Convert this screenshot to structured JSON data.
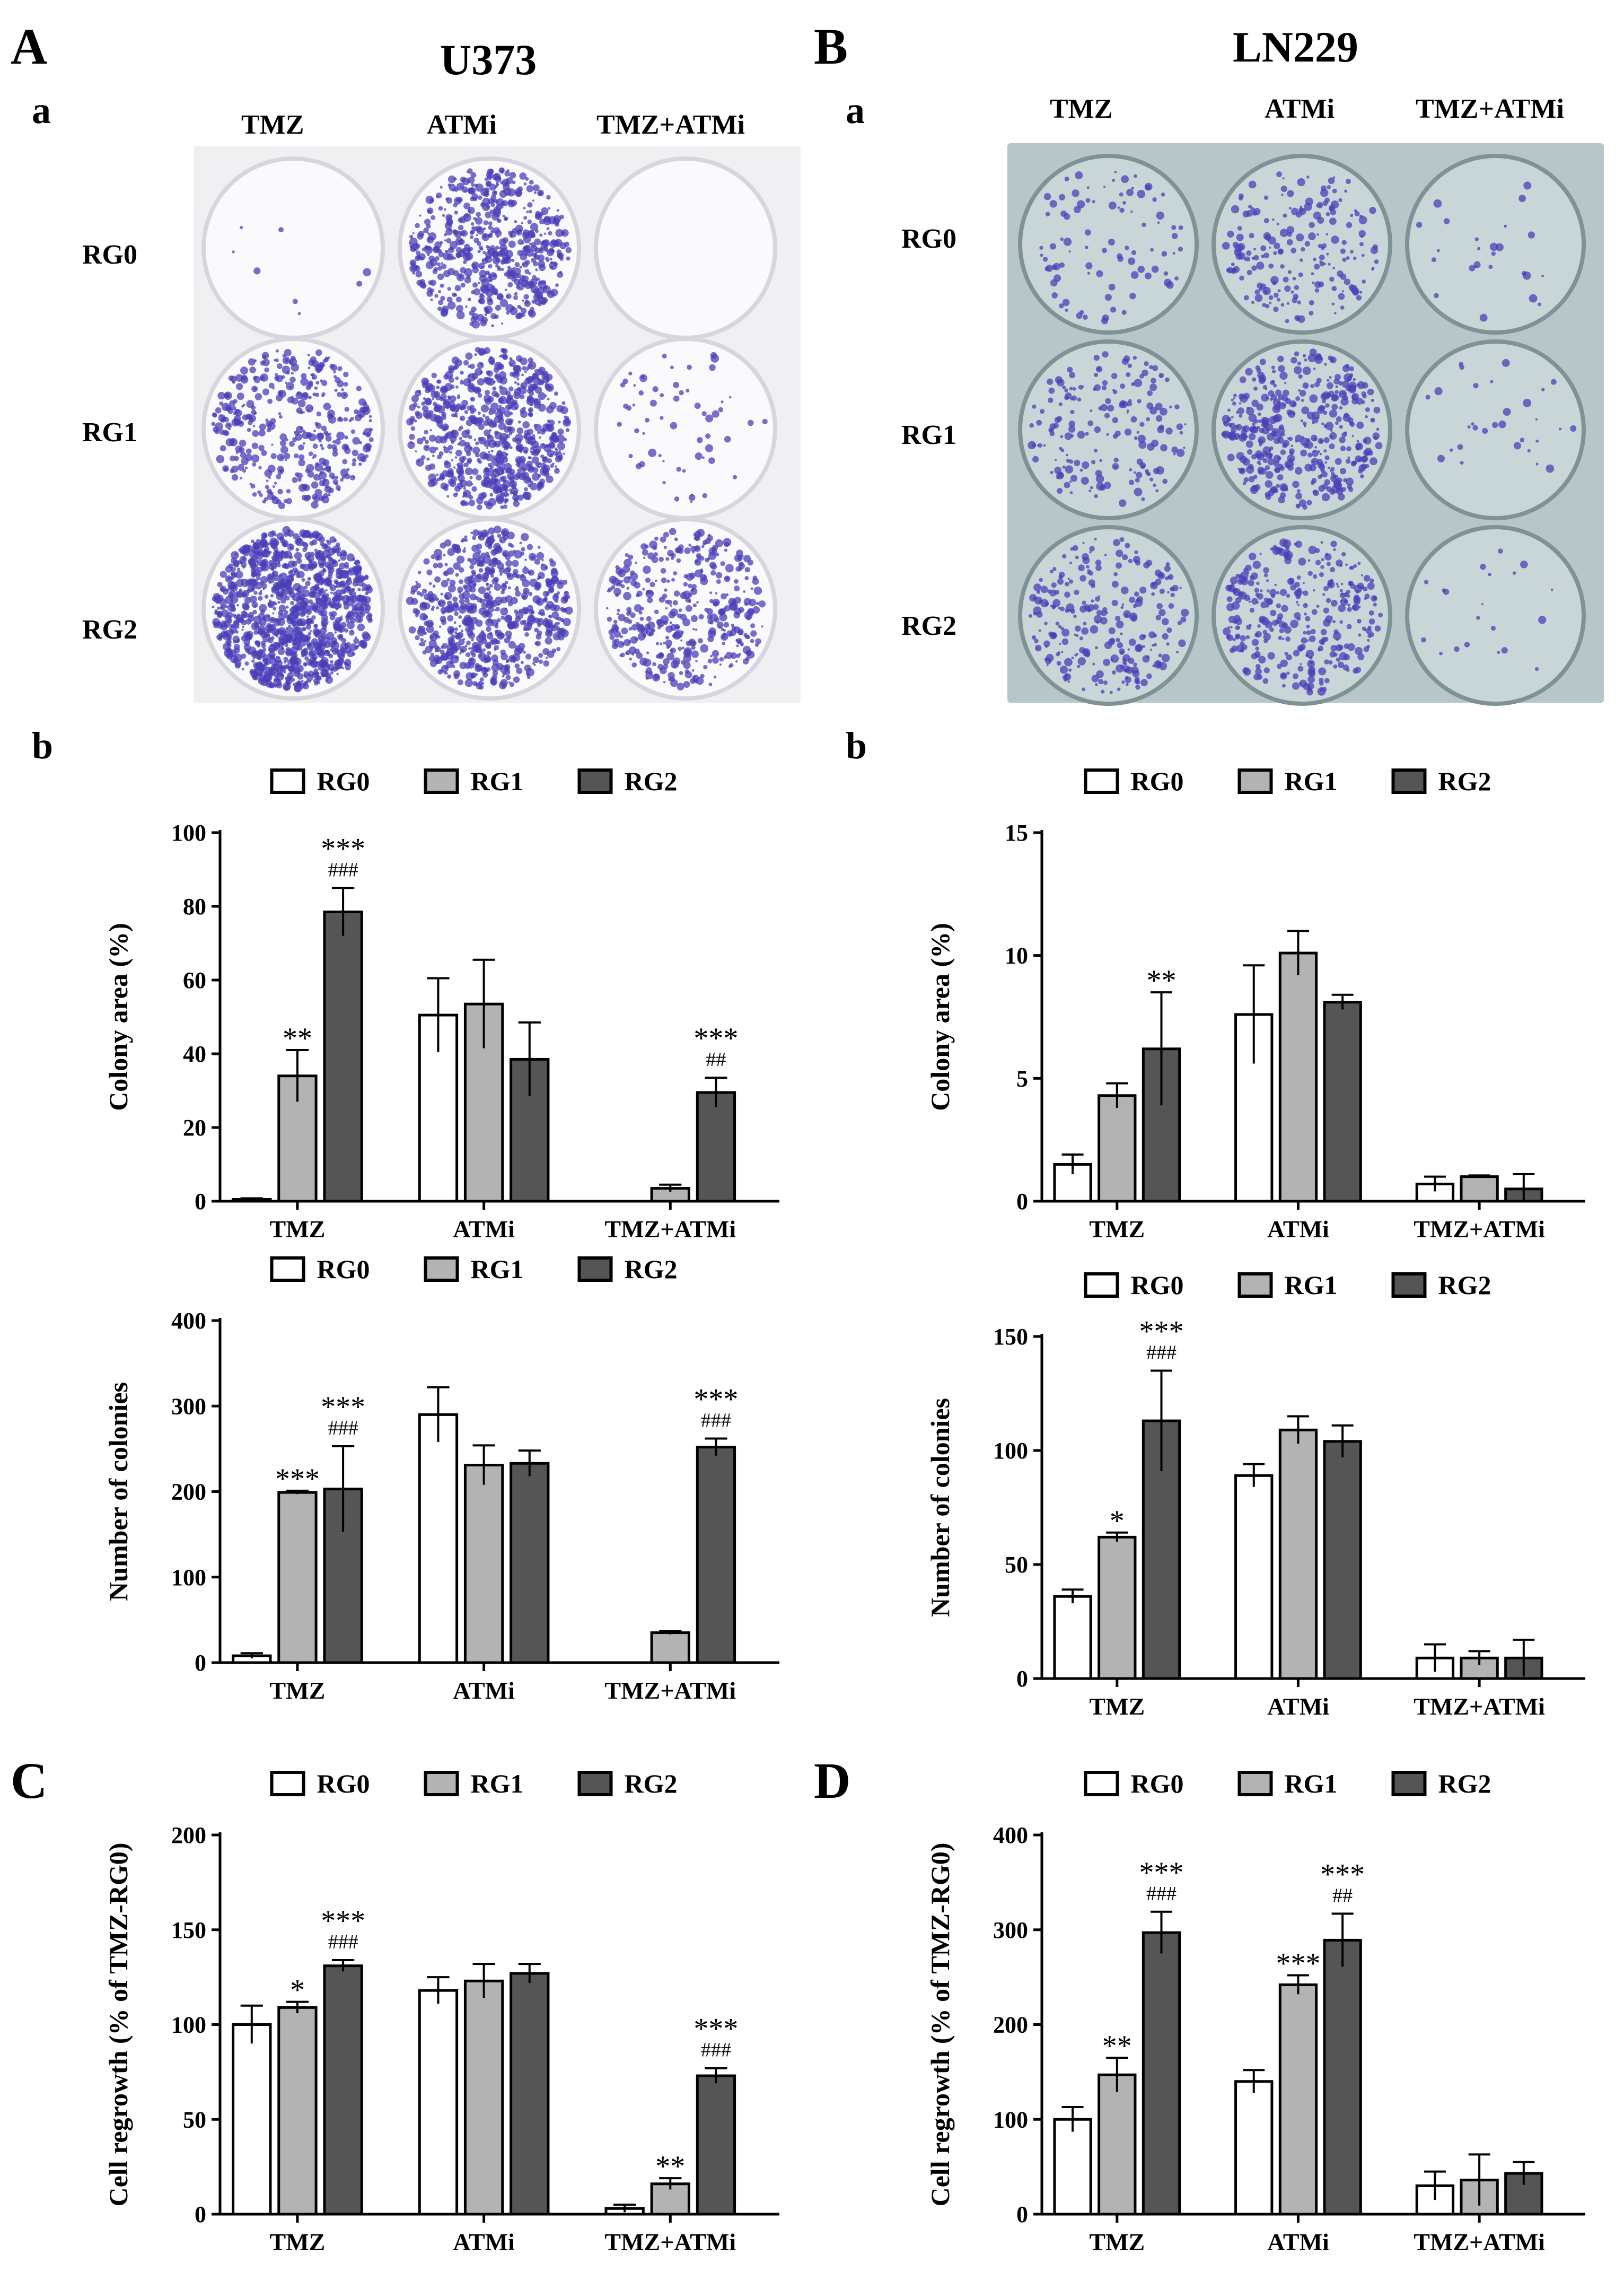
{
  "panels": {
    "A": {
      "letter": "A",
      "cell_line": "U373"
    },
    "B": {
      "letter": "B",
      "cell_line": "LN229"
    },
    "C": {
      "letter": "C"
    },
    "D": {
      "letter": "D"
    }
  },
  "sublabels": {
    "a": "a",
    "b": "b"
  },
  "photo_columns": [
    "TMZ",
    "ATMi",
    "TMZ+ATMi"
  ],
  "photo_rows": [
    "RG0",
    "RG1",
    "RG2"
  ],
  "colors": {
    "RG0": "#ffffff",
    "RG1": "#b3b3b3",
    "RG2": "#555555",
    "colony": "#4b3fb8"
  },
  "chart_data": [
    {
      "id": "A-b-area",
      "type": "bar",
      "categories": [
        "TMZ",
        "ATMi",
        "TMZ+ATMi"
      ],
      "ylabel": "Colony area (%)",
      "ylim": [
        0,
        100
      ],
      "yticks": [
        0,
        20,
        40,
        60,
        80,
        100
      ],
      "series": [
        {
          "name": "RG0",
          "values": [
            0.5,
            50.5,
            0
          ],
          "errors": [
            0.3,
            10,
            0
          ]
        },
        {
          "name": "RG1",
          "values": [
            34,
            53.5,
            3.5
          ],
          "errors": [
            7,
            12,
            1
          ]
        },
        {
          "name": "RG2",
          "values": [
            78.5,
            38.5,
            29.5
          ],
          "errors": [
            6.5,
            10,
            4
          ]
        }
      ],
      "annotations": [
        {
          "category": 0,
          "series": 1,
          "lines": [
            "**"
          ]
        },
        {
          "category": 0,
          "series": 2,
          "lines": [
            "***",
            "###"
          ]
        },
        {
          "category": 2,
          "series": 2,
          "lines": [
            "***",
            "##"
          ]
        }
      ]
    },
    {
      "id": "A-b-number",
      "type": "bar",
      "categories": [
        "TMZ",
        "ATMi",
        "TMZ+ATMi"
      ],
      "ylabel": "Number of colonies",
      "ylim": [
        0,
        400
      ],
      "yticks": [
        0,
        100,
        200,
        300,
        400
      ],
      "series": [
        {
          "name": "RG0",
          "values": [
            8,
            290,
            0
          ],
          "errors": [
            3,
            32,
            0
          ]
        },
        {
          "name": "RG1",
          "values": [
            199,
            231,
            35
          ],
          "errors": [
            2,
            23,
            2
          ]
        },
        {
          "name": "RG2",
          "values": [
            203,
            233,
            252
          ],
          "errors": [
            50,
            15,
            10
          ]
        }
      ],
      "annotations": [
        {
          "category": 0,
          "series": 1,
          "lines": [
            "***"
          ]
        },
        {
          "category": 0,
          "series": 2,
          "lines": [
            "***",
            "###"
          ]
        },
        {
          "category": 2,
          "series": 2,
          "lines": [
            "***",
            "###"
          ]
        }
      ]
    },
    {
      "id": "B-b-area",
      "type": "bar",
      "categories": [
        "TMZ",
        "ATMi",
        "TMZ+ATMi"
      ],
      "ylabel": "Colony area (%)",
      "ylim": [
        0,
        15
      ],
      "yticks": [
        0,
        5,
        10,
        15
      ],
      "series": [
        {
          "name": "RG0",
          "values": [
            1.5,
            7.6,
            0.7
          ],
          "errors": [
            0.4,
            2.0,
            0.3
          ]
        },
        {
          "name": "RG1",
          "values": [
            4.3,
            10.1,
            1.0
          ],
          "errors": [
            0.5,
            0.9,
            0.05
          ]
        },
        {
          "name": "RG2",
          "values": [
            6.2,
            8.1,
            0.5
          ],
          "errors": [
            2.3,
            0.3,
            0.6
          ]
        }
      ],
      "annotations": [
        {
          "category": 0,
          "series": 2,
          "lines": [
            "**"
          ]
        }
      ]
    },
    {
      "id": "B-b-number",
      "type": "bar",
      "categories": [
        "TMZ",
        "ATMi",
        "TMZ+ATMi"
      ],
      "ylabel": "Number of colonies",
      "ylim": [
        0,
        150
      ],
      "yticks": [
        0,
        50,
        100,
        150
      ],
      "series": [
        {
          "name": "RG0",
          "values": [
            36,
            89,
            9
          ],
          "errors": [
            3,
            5,
            6
          ]
        },
        {
          "name": "RG1",
          "values": [
            62,
            109,
            9
          ],
          "errors": [
            2,
            6,
            3
          ]
        },
        {
          "name": "RG2",
          "values": [
            113,
            104,
            9
          ],
          "errors": [
            22,
            7,
            8
          ]
        }
      ],
      "annotations": [
        {
          "category": 0,
          "series": 1,
          "lines": [
            "*"
          ]
        },
        {
          "category": 0,
          "series": 2,
          "lines": [
            "***",
            "###"
          ]
        }
      ]
    },
    {
      "id": "C",
      "type": "bar",
      "categories": [
        "TMZ",
        "ATMi",
        "TMZ+ATMi"
      ],
      "ylabel": "Cell regrowth  (% of TMZ-RG0)",
      "ylim": [
        0,
        200
      ],
      "yticks": [
        0,
        50,
        100,
        150,
        200
      ],
      "series": [
        {
          "name": "RG0",
          "values": [
            100,
            118,
            3
          ],
          "errors": [
            10,
            7,
            2
          ]
        },
        {
          "name": "RG1",
          "values": [
            109,
            123,
            16
          ],
          "errors": [
            3,
            9,
            3
          ]
        },
        {
          "name": "RG2",
          "values": [
            131,
            127,
            73
          ],
          "errors": [
            3,
            5,
            4
          ]
        }
      ],
      "annotations": [
        {
          "category": 0,
          "series": 1,
          "lines": [
            "*"
          ]
        },
        {
          "category": 0,
          "series": 2,
          "lines": [
            "***",
            "###"
          ]
        },
        {
          "category": 2,
          "series": 1,
          "lines": [
            "**"
          ]
        },
        {
          "category": 2,
          "series": 2,
          "lines": [
            "***",
            "###"
          ]
        }
      ]
    },
    {
      "id": "D",
      "type": "bar",
      "categories": [
        "TMZ",
        "ATMi",
        "TMZ+ATMi"
      ],
      "ylabel": "Cell regrowth  (% of TMZ-RG0)",
      "ylim": [
        0,
        400
      ],
      "yticks": [
        0,
        100,
        200,
        300,
        400
      ],
      "series": [
        {
          "name": "RG0",
          "values": [
            100,
            140,
            30
          ],
          "errors": [
            13,
            12,
            15
          ]
        },
        {
          "name": "RG1",
          "values": [
            147,
            242,
            36
          ],
          "errors": [
            18,
            10,
            27
          ]
        },
        {
          "name": "RG2",
          "values": [
            297,
            289,
            43
          ],
          "errors": [
            22,
            28,
            12
          ]
        }
      ],
      "annotations": [
        {
          "category": 0,
          "series": 1,
          "lines": [
            "**"
          ]
        },
        {
          "category": 0,
          "series": 2,
          "lines": [
            "***",
            "###"
          ]
        },
        {
          "category": 1,
          "series": 1,
          "lines": [
            "***"
          ]
        },
        {
          "category": 1,
          "series": 2,
          "lines": [
            "***",
            "##"
          ]
        }
      ]
    }
  ]
}
